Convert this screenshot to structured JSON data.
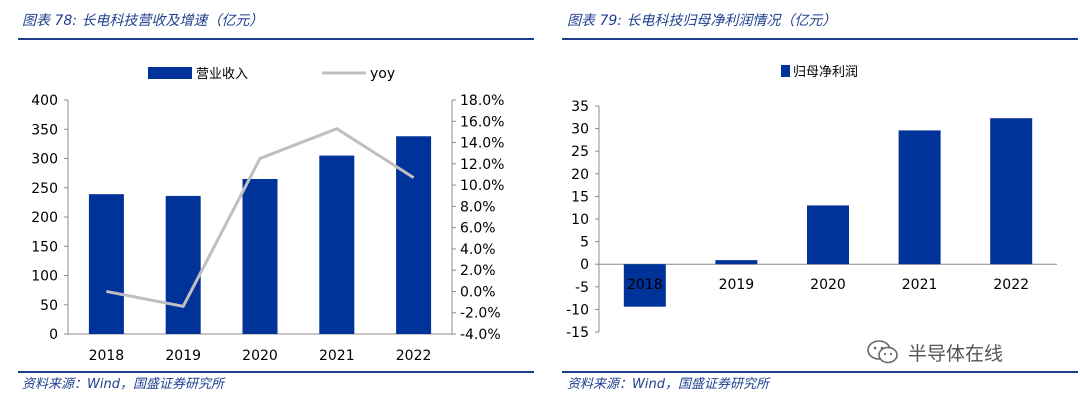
{
  "left": {
    "title": "图表 78:  长电科技营收及增速（亿元）",
    "source": "资料来源：Wind，国盛证券研究所"
  },
  "right": {
    "title": "图表 79:  长电科技归母净利润情况（亿元）",
    "source": "资料来源：Wind，国盛证券研究所"
  },
  "watermark": {
    "text": "半导体在线",
    "icon": "wechat-icon"
  },
  "colors": {
    "bar": "#003399",
    "line": "#bfbfbf",
    "title": "#1f3f8f",
    "axis": "#8c8c8c"
  },
  "chart_data": [
    {
      "type": "bar",
      "categories": [
        "2018",
        "2019",
        "2020",
        "2021",
        "2022"
      ],
      "series": [
        {
          "name": "营业收入",
          "type": "bar",
          "axis": "left",
          "values": [
            239,
            236,
            265,
            305,
            338
          ]
        },
        {
          "name": "yoy",
          "type": "line",
          "axis": "right",
          "values": [
            0.0,
            -1.4,
            12.5,
            15.3,
            10.7
          ]
        }
      ],
      "ylim": [
        0,
        400
      ],
      "yticks": [
        0,
        50,
        100,
        150,
        200,
        250,
        300,
        350,
        400
      ],
      "ytick_labels": [
        "0",
        "50",
        "100",
        "150",
        "200",
        "250",
        "300",
        "350",
        "400"
      ],
      "y2lim": [
        -4,
        18
      ],
      "y2ticks": [
        -4,
        -2,
        0,
        2,
        4,
        6,
        8,
        10,
        12,
        14,
        16,
        18
      ],
      "y2tick_labels": [
        "-4.0%",
        "-2.0%",
        "0.0%",
        "2.0%",
        "4.0%",
        "6.0%",
        "8.0%",
        "10.0%",
        "12.0%",
        "14.0%",
        "16.0%",
        "18.0%"
      ],
      "legend": "top",
      "grid": false
    },
    {
      "type": "bar",
      "categories": [
        "2018",
        "2019",
        "2020",
        "2021",
        "2022"
      ],
      "series": [
        {
          "name": "归母净利润",
          "values": [
            -9.4,
            0.9,
            13.0,
            29.6,
            32.3
          ]
        }
      ],
      "ylim": [
        -15,
        35
      ],
      "yticks": [
        -15,
        -10,
        -5,
        0,
        5,
        10,
        15,
        20,
        25,
        30,
        35
      ],
      "ytick_labels": [
        "-15",
        "-10",
        "-5",
        "0",
        "5",
        "10",
        "15",
        "20",
        "25",
        "30",
        "35"
      ],
      "legend": "top",
      "grid": false
    }
  ]
}
